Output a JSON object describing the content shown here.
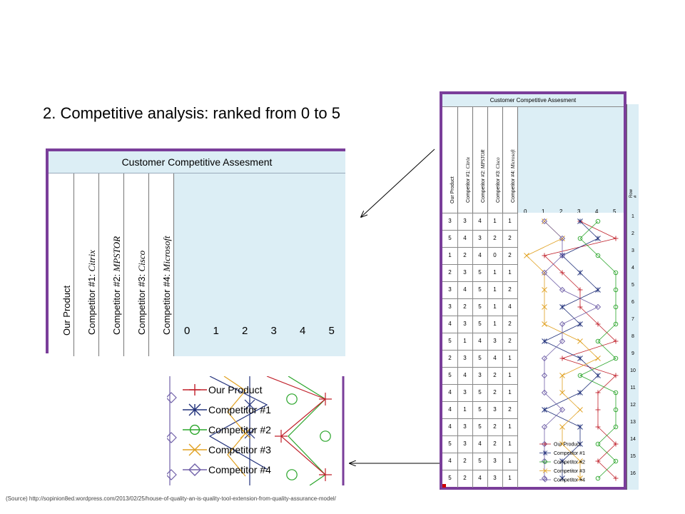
{
  "slide": {
    "title": "2. Competitive analysis: ranked from 0 to 5",
    "source": "(Source) http://sopinion8ed.wordpress.com/2013/02/25/house-of-quality-an-is-quality-tool-extension-from-quality-assurance-model/"
  },
  "zoom_header": {
    "title": "Customer Competitive Assesment",
    "columns": [
      {
        "prefix": "Our Product",
        "name": ""
      },
      {
        "prefix": "Competitor #1:",
        "name": "Citrix"
      },
      {
        "prefix": "Competitor #2:",
        "name": "MPSTOR"
      },
      {
        "prefix": "Competitor #3:",
        "name": "Cisco"
      },
      {
        "prefix": "Competitor #4:",
        "name": "Microsoft"
      }
    ],
    "scale": [
      "0",
      "1",
      "2",
      "3",
      "4",
      "5"
    ]
  },
  "matrix": {
    "title": "Customer Competitive Assesment",
    "row_header": "Row #",
    "rows": [
      [
        3,
        3,
        4,
        1,
        1
      ],
      [
        5,
        4,
        3,
        2,
        2
      ],
      [
        1,
        2,
        4,
        0,
        2
      ],
      [
        2,
        3,
        5,
        1,
        1
      ],
      [
        3,
        4,
        5,
        1,
        2
      ],
      [
        3,
        2,
        5,
        1,
        4
      ],
      [
        4,
        3,
        5,
        1,
        2
      ],
      [
        5,
        1,
        4,
        3,
        2
      ],
      [
        2,
        3,
        5,
        4,
        1
      ],
      [
        5,
        4,
        3,
        2,
        1
      ],
      [
        4,
        3,
        5,
        2,
        1
      ],
      [
        4,
        1,
        5,
        3,
        2
      ],
      [
        4,
        3,
        5,
        2,
        1
      ],
      [
        5,
        3,
        4,
        2,
        1
      ],
      [
        4,
        2,
        5,
        3,
        1
      ],
      [
        5,
        2,
        4,
        3,
        1
      ]
    ],
    "row_numbers": [
      "1",
      "2",
      "3",
      "4",
      "5",
      "6",
      "7",
      "8",
      "9",
      "10",
      "11",
      "12",
      "13",
      "14",
      "15",
      "16"
    ]
  },
  "legend": {
    "items": [
      {
        "label": "Our Product",
        "color": "#c0202a",
        "icon": "plus-marker-icon"
      },
      {
        "label": "Competitor #1",
        "color": "#20307a",
        "icon": "asterisk-marker-icon"
      },
      {
        "label": "Competitor #2",
        "color": "#2aa52a",
        "icon": "circle-marker-icon"
      },
      {
        "label": "Competitor #3",
        "color": "#e0a020",
        "icon": "x-marker-icon"
      },
      {
        "label": "Competitor #4",
        "color": "#7060a8",
        "icon": "diamond-marker-icon"
      }
    ]
  }
}
